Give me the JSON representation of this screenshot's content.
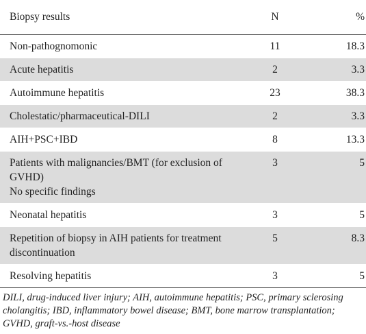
{
  "table": {
    "header": [
      "Biopsy results",
      "N",
      "%"
    ],
    "rows": [
      [
        "Non-pathognomonic",
        11,
        18.3
      ],
      [
        "Acute hepatitis",
        2,
        3.3
      ],
      [
        "Autoimmune hepatitis",
        23,
        38.3
      ],
      [
        "Cholestatic/pharmaceutical-DILI",
        2,
        3.3
      ],
      [
        "AIH+PSC+IBD",
        8,
        13.3
      ],
      [
        "Patients with malignancies/BMT (for exclusion of GVHD)\nNo specific findings",
        3,
        5
      ],
      [
        "Neonatal hepatitis",
        3,
        5
      ],
      [
        "Repetition of biopsy in AIH patients for treatment discontinuation",
        5,
        8.3
      ],
      [
        "Resolving hepatitis",
        3,
        5
      ]
    ]
  },
  "footnote": "DILI, drug-induced liver injury; AIH, autoimmune hepatitis; PSC, primary sclerosing cholangitis; IBD, inflammatory bowel disease; BMT, bone marrow transplantation; GVHD, graft-vs.-host disease"
}
